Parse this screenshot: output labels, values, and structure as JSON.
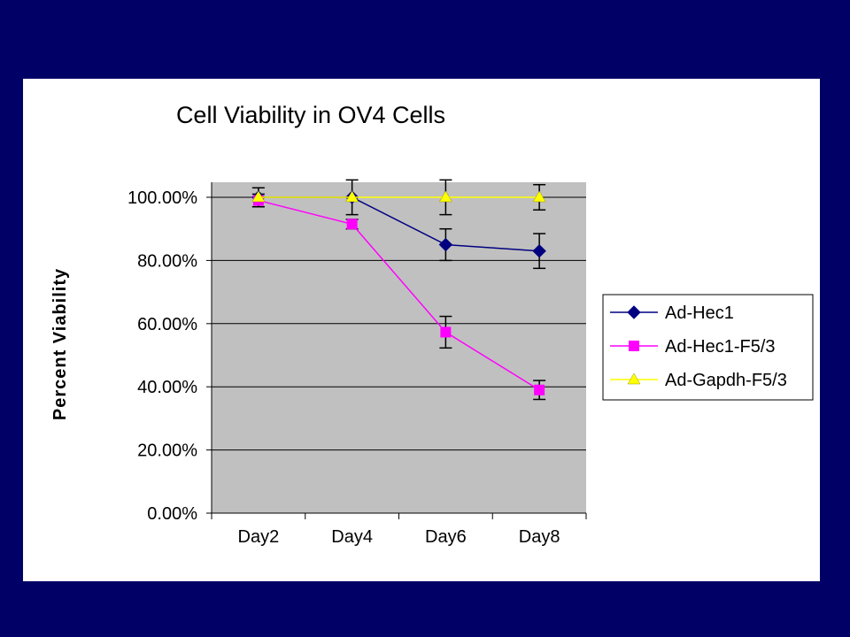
{
  "chart_data": {
    "type": "line",
    "title": "Cell Viability in OV4 Cells",
    "xlabel": "",
    "ylabel": "Percent Viability",
    "categories": [
      "Day2",
      "Day4",
      "Day6",
      "Day8"
    ],
    "ylim": [
      0,
      1.0
    ],
    "yticks": [
      "0.00%",
      "20.00%",
      "40.00%",
      "60.00%",
      "80.00%",
      "100.00%"
    ],
    "grid": true,
    "legend_position": "right",
    "series": [
      {
        "name": "Ad-Hec1",
        "color": "#000080",
        "marker": "diamond",
        "values": [
          1.0,
          1.0,
          0.85,
          0.83
        ],
        "errors": [
          0.03,
          0.055,
          0.05,
          0.055
        ]
      },
      {
        "name": "Ad-Hec1-F5/3",
        "color": "#ff00ff",
        "marker": "square",
        "values": [
          0.99,
          0.915,
          0.573,
          0.39
        ],
        "errors": [
          0.02,
          0.015,
          0.05,
          0.03
        ]
      },
      {
        "name": "Ad-Gapdh-F5/3",
        "color": "#ffff00",
        "marker": "triangle",
        "values": [
          1.0,
          1.0,
          1.0,
          1.0
        ],
        "errors": [
          0,
          0,
          0.055,
          0.04
        ]
      }
    ]
  }
}
